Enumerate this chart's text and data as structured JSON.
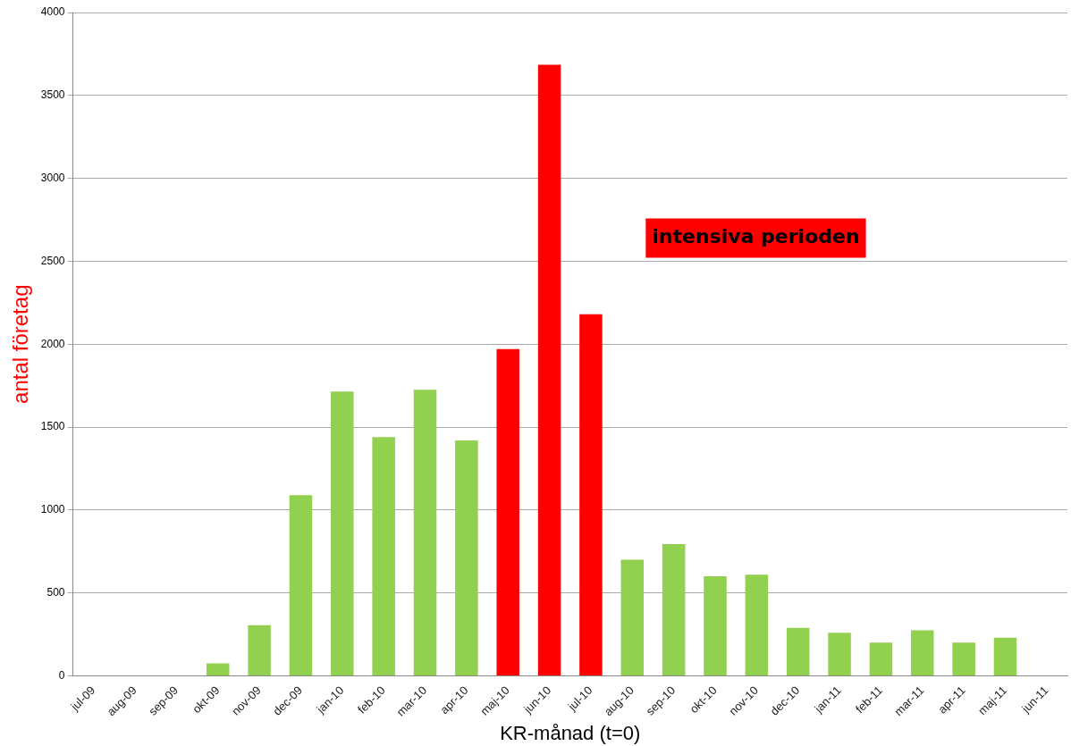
{
  "chart_data": {
    "type": "bar",
    "xlabel": "KR-månad (t=0)",
    "ylabel": "antal företag",
    "categories": [
      "jul-09",
      "aug-09",
      "sep-09",
      "okt-09",
      "nov-09",
      "dec-09",
      "jan-10",
      "feb-10",
      "mar-10",
      "apr-10",
      "maj-10",
      "jun-10",
      "jul-10",
      "aug-10",
      "sep-10",
      "okt-10",
      "nov-10",
      "dec-10",
      "jan-11",
      "feb-11",
      "mar-11",
      "apr-11",
      "maj-11",
      "jun-11"
    ],
    "values": [
      0,
      0,
      0,
      75,
      305,
      1090,
      1715,
      1440,
      1725,
      1420,
      1970,
      3685,
      2180,
      700,
      795,
      600,
      610,
      290,
      260,
      200,
      275,
      200,
      230,
      0
    ],
    "colors": [
      "#92d050",
      "#92d050",
      "#92d050",
      "#92d050",
      "#92d050",
      "#92d050",
      "#92d050",
      "#92d050",
      "#92d050",
      "#92d050",
      "#ff0000",
      "#ff0000",
      "#ff0000",
      "#92d050",
      "#92d050",
      "#92d050",
      "#92d050",
      "#92d050",
      "#92d050",
      "#92d050",
      "#92d050",
      "#92d050",
      "#92d050",
      "#92d050"
    ],
    "ylim": [
      0,
      4000
    ],
    "yticks": [
      0,
      500,
      1000,
      1500,
      2000,
      2500,
      3000,
      3500,
      4000
    ],
    "grid": "y",
    "annotations": [
      "intensiva perioden"
    ]
  }
}
